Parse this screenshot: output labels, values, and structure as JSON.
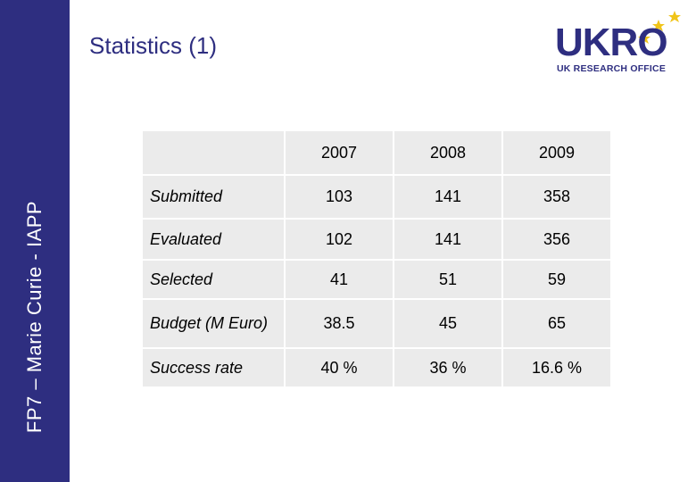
{
  "sidebar": {
    "text": "FP7 – Marie Curie - IAPP"
  },
  "title": "Statistics (1)",
  "logo": {
    "word": "UKRO",
    "subtitle": "UK RESEARCH OFFICE",
    "star_color": "#f0c419",
    "brand_color": "#2e2e80"
  },
  "table": {
    "headers": [
      "",
      "2007",
      "2008",
      "2009"
    ],
    "rows": [
      {
        "label": "Submitted",
        "values": [
          "103",
          "141",
          "358"
        ]
      },
      {
        "label": "Evaluated",
        "values": [
          "102",
          "141",
          "356"
        ]
      },
      {
        "label": "Selected",
        "values": [
          "41",
          "51",
          "59"
        ]
      },
      {
        "label": "Budget (M Euro)",
        "values": [
          "38.5",
          "45",
          "65"
        ]
      },
      {
        "label": "Success rate",
        "values": [
          "40 %",
          "36 %",
          "16.6 %"
        ]
      }
    ]
  }
}
